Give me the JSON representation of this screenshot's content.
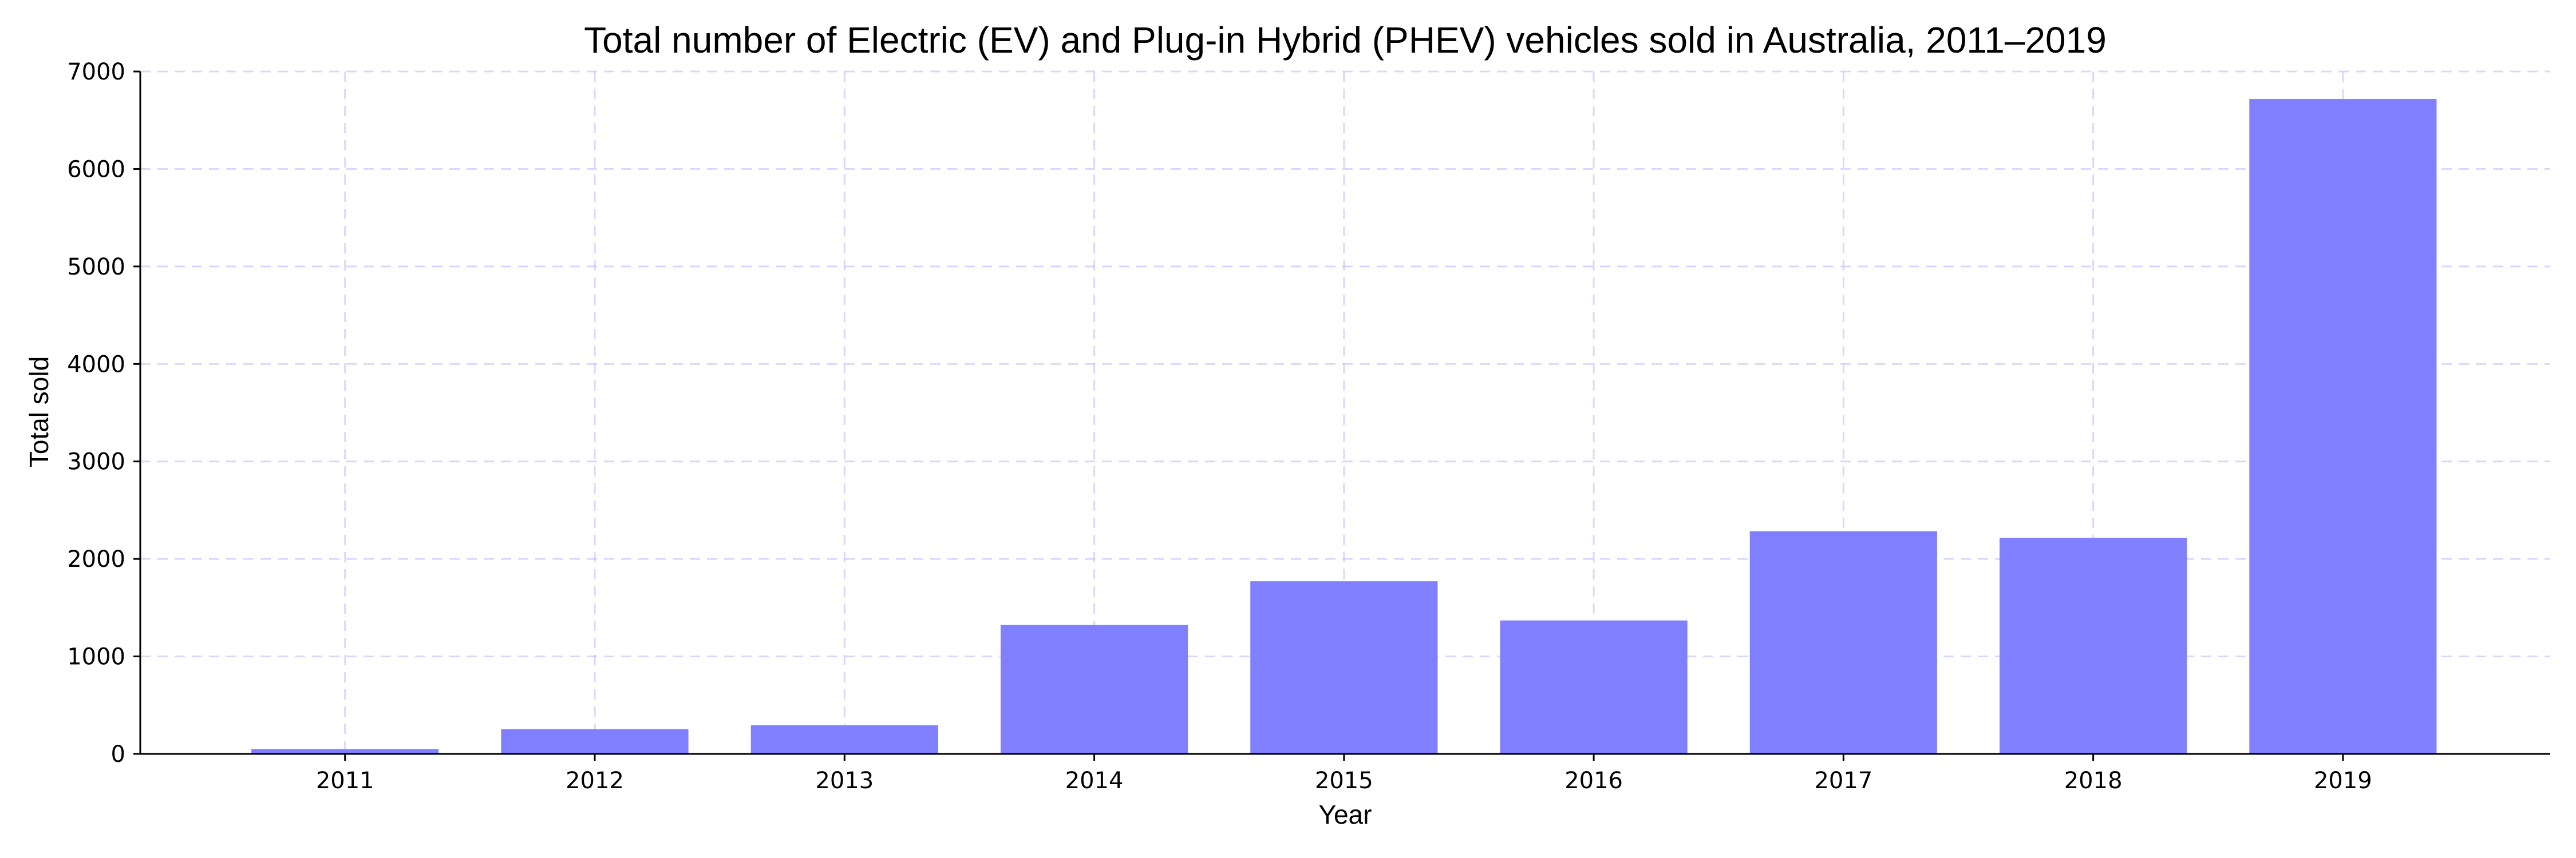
{
  "chart_data": {
    "type": "bar",
    "title": "Total number of Electric (EV) and Plug-in Hybrid (PHEV) vehicles sold in Australia, 2011–2019",
    "xlabel": "Year",
    "ylabel": "Total sold",
    "categories": [
      "2011",
      "2012",
      "2013",
      "2014",
      "2015",
      "2016",
      "2017",
      "2018",
      "2019"
    ],
    "values": [
      49,
      253,
      293,
      1322,
      1771,
      1369,
      2284,
      2216,
      6718
    ],
    "ylim": [
      0,
      7000
    ],
    "yticks": [
      0,
      1000,
      2000,
      3000,
      4000,
      5000,
      6000,
      7000
    ],
    "grid": true,
    "bar_color": "#8080ff",
    "grid_color": "#b8b8ff",
    "axis_color": "#000000"
  }
}
